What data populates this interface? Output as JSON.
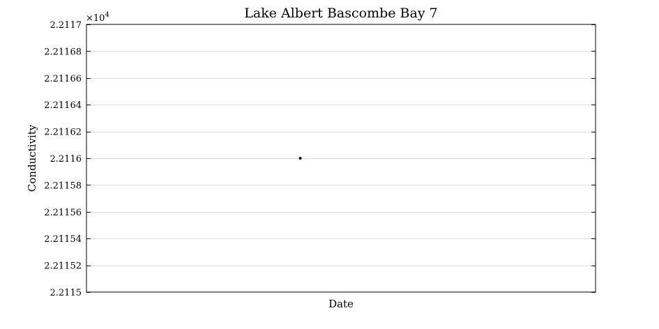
{
  "chart_data": {
    "type": "scatter",
    "title": "Lake Albert Bascombe Bay 7",
    "xlabel": "Date",
    "ylabel": "Conductivity",
    "exponent_label": "×10",
    "exponent_power": "4",
    "ylim": [
      2.2115,
      2.2117
    ],
    "ytick_labels": [
      "2.2115",
      "2.21152",
      "2.21154",
      "2.21156",
      "2.21158",
      "2.2116",
      "2.21162",
      "2.21164",
      "2.21166",
      "2.21168",
      "2.2117"
    ],
    "grid": true,
    "points": [
      {
        "x_fraction": 0.42,
        "y": 2.2116
      }
    ]
  }
}
